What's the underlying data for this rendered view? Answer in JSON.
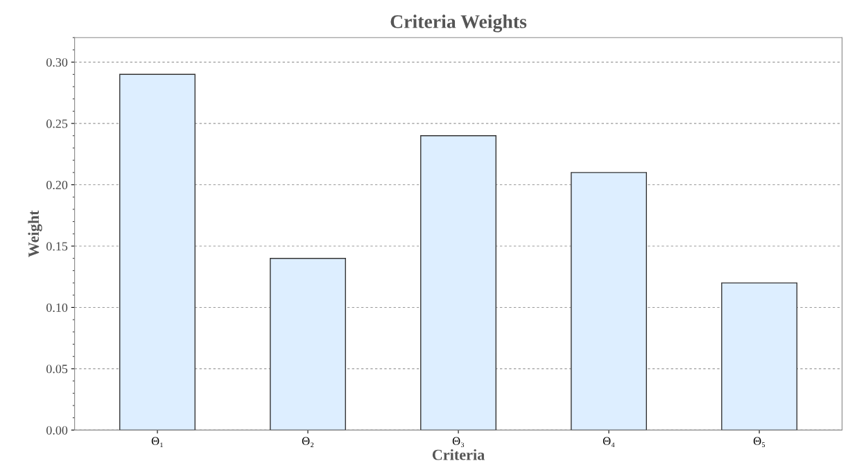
{
  "chart_data": {
    "type": "bar",
    "title": "Criteria Weights",
    "xlabel": "Criteria",
    "ylabel": "Weight",
    "categories": [
      "Θ₁",
      "Θ₂",
      "Θ₃",
      "Θ₄",
      "Θ₅"
    ],
    "values": [
      0.29,
      0.14,
      0.24,
      0.21,
      0.12
    ],
    "color": "#ddeeff",
    "ylim": [
      0,
      0.32
    ],
    "yticks": [
      {
        "value": 0,
        "label": "0.00"
      },
      {
        "value": 0.05,
        "label": "0.05"
      },
      {
        "value": 0.1,
        "label": "0.10"
      },
      {
        "value": 0.15,
        "label": "0.15"
      },
      {
        "value": 0.2,
        "label": "0.20"
      },
      {
        "value": 0.25,
        "label": "0.25"
      },
      {
        "value": 0.3,
        "label": "0.30"
      }
    ],
    "grid": "y"
  }
}
